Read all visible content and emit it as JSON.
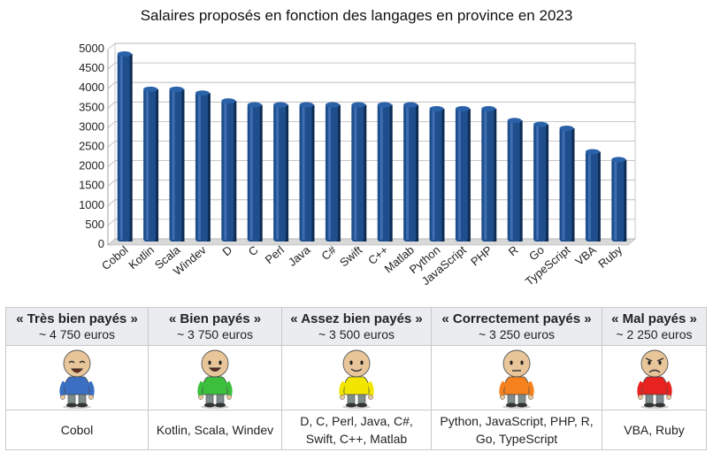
{
  "chart_data": {
    "type": "bar",
    "title": "Salaires proposés en fonction des langages en province en 2023",
    "categories": [
      "Cobol",
      "Kotlin",
      "Scala",
      "Windev",
      "D",
      "C",
      "Perl",
      "Java",
      "C#",
      "Swift",
      "C++",
      "Matlab",
      "Python",
      "JavaScript",
      "PHP",
      "R",
      "Go",
      "TypeScript",
      "VBA",
      "Ruby"
    ],
    "values": [
      4750,
      3850,
      3850,
      3750,
      3550,
      3450,
      3450,
      3450,
      3450,
      3450,
      3450,
      3450,
      3350,
      3350,
      3350,
      3050,
      2950,
      2850,
      2250,
      2050
    ],
    "ylim": [
      0,
      5000
    ],
    "yticks": [
      0,
      500,
      1000,
      1500,
      2000,
      2500,
      3000,
      3500,
      4000,
      4500,
      5000
    ],
    "grid": true,
    "bar_color": "#1f4e8c"
  },
  "tiers": [
    {
      "label": "« Très bien payés »",
      "amount": "~ 4 750 euros",
      "langs": "Cobol",
      "shirt": "#3a6fc4",
      "mood": "laugh"
    },
    {
      "label": "« Bien payés »",
      "amount": "~ 3 750 euros",
      "langs": "Kotlin, Scala, Windev",
      "shirt": "#3cbf3c",
      "mood": "happy"
    },
    {
      "label": "« Assez bien payés »",
      "amount": "~ 3 500 euros",
      "langs": "D, C, Perl, Java, C#, Swift, C++, Matlab",
      "shirt": "#f2e600",
      "mood": "smile"
    },
    {
      "label": "« Correctement payés »",
      "amount": "~ 3 250 euros",
      "langs": "Python, JavaScript, PHP, R, Go, TypeScript",
      "shirt": "#f5821f",
      "mood": "neutral"
    },
    {
      "label": "« Mal payés »",
      "amount": "~ 2 250 euros",
      "langs": "VBA, Ruby",
      "shirt": "#e8231f",
      "mood": "angry"
    }
  ]
}
